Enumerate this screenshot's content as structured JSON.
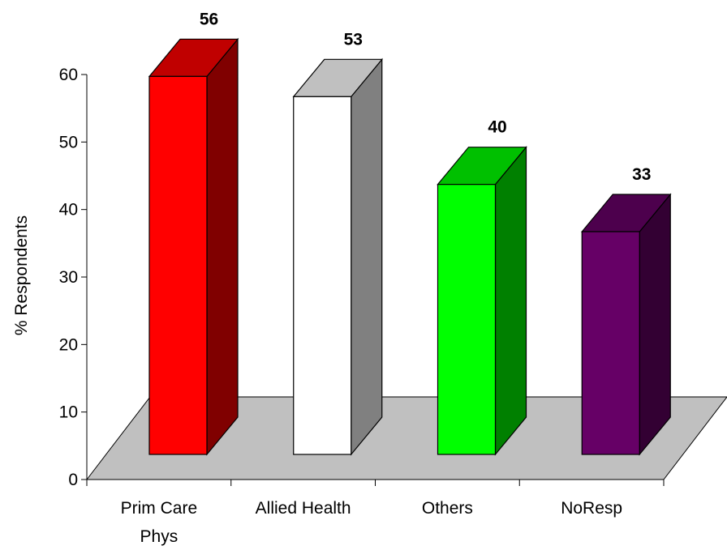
{
  "chart_data": {
    "type": "bar",
    "categories": [
      [
        "Prim Care",
        "Phys"
      ],
      [
        "Allied Health"
      ],
      [
        "Others"
      ],
      [
        "NoResp"
      ]
    ],
    "values": [
      56,
      53,
      40,
      33
    ],
    "data_labels": [
      "56",
      "53",
      "40",
      "33"
    ],
    "title": "",
    "xlabel": "",
    "ylabel": "% Respondents",
    "ylim": [
      0,
      60
    ],
    "y_ticks": [
      "0",
      "10",
      "20",
      "30",
      "40",
      "50",
      "60"
    ],
    "grid": false,
    "legend": "none",
    "style": "3d-column",
    "colors": {
      "bars": [
        {
          "front": "#FF0000",
          "side": "#800000",
          "top": "#C00000"
        },
        {
          "front": "#FFFFFF",
          "side": "#808080",
          "top": "#C0C0C0"
        },
        {
          "front": "#00FF00",
          "side": "#008000",
          "top": "#00C000"
        },
        {
          "front": "#660066",
          "side": "#330033",
          "top": "#4D004D"
        }
      ],
      "floor": "#C0C0C0"
    }
  }
}
